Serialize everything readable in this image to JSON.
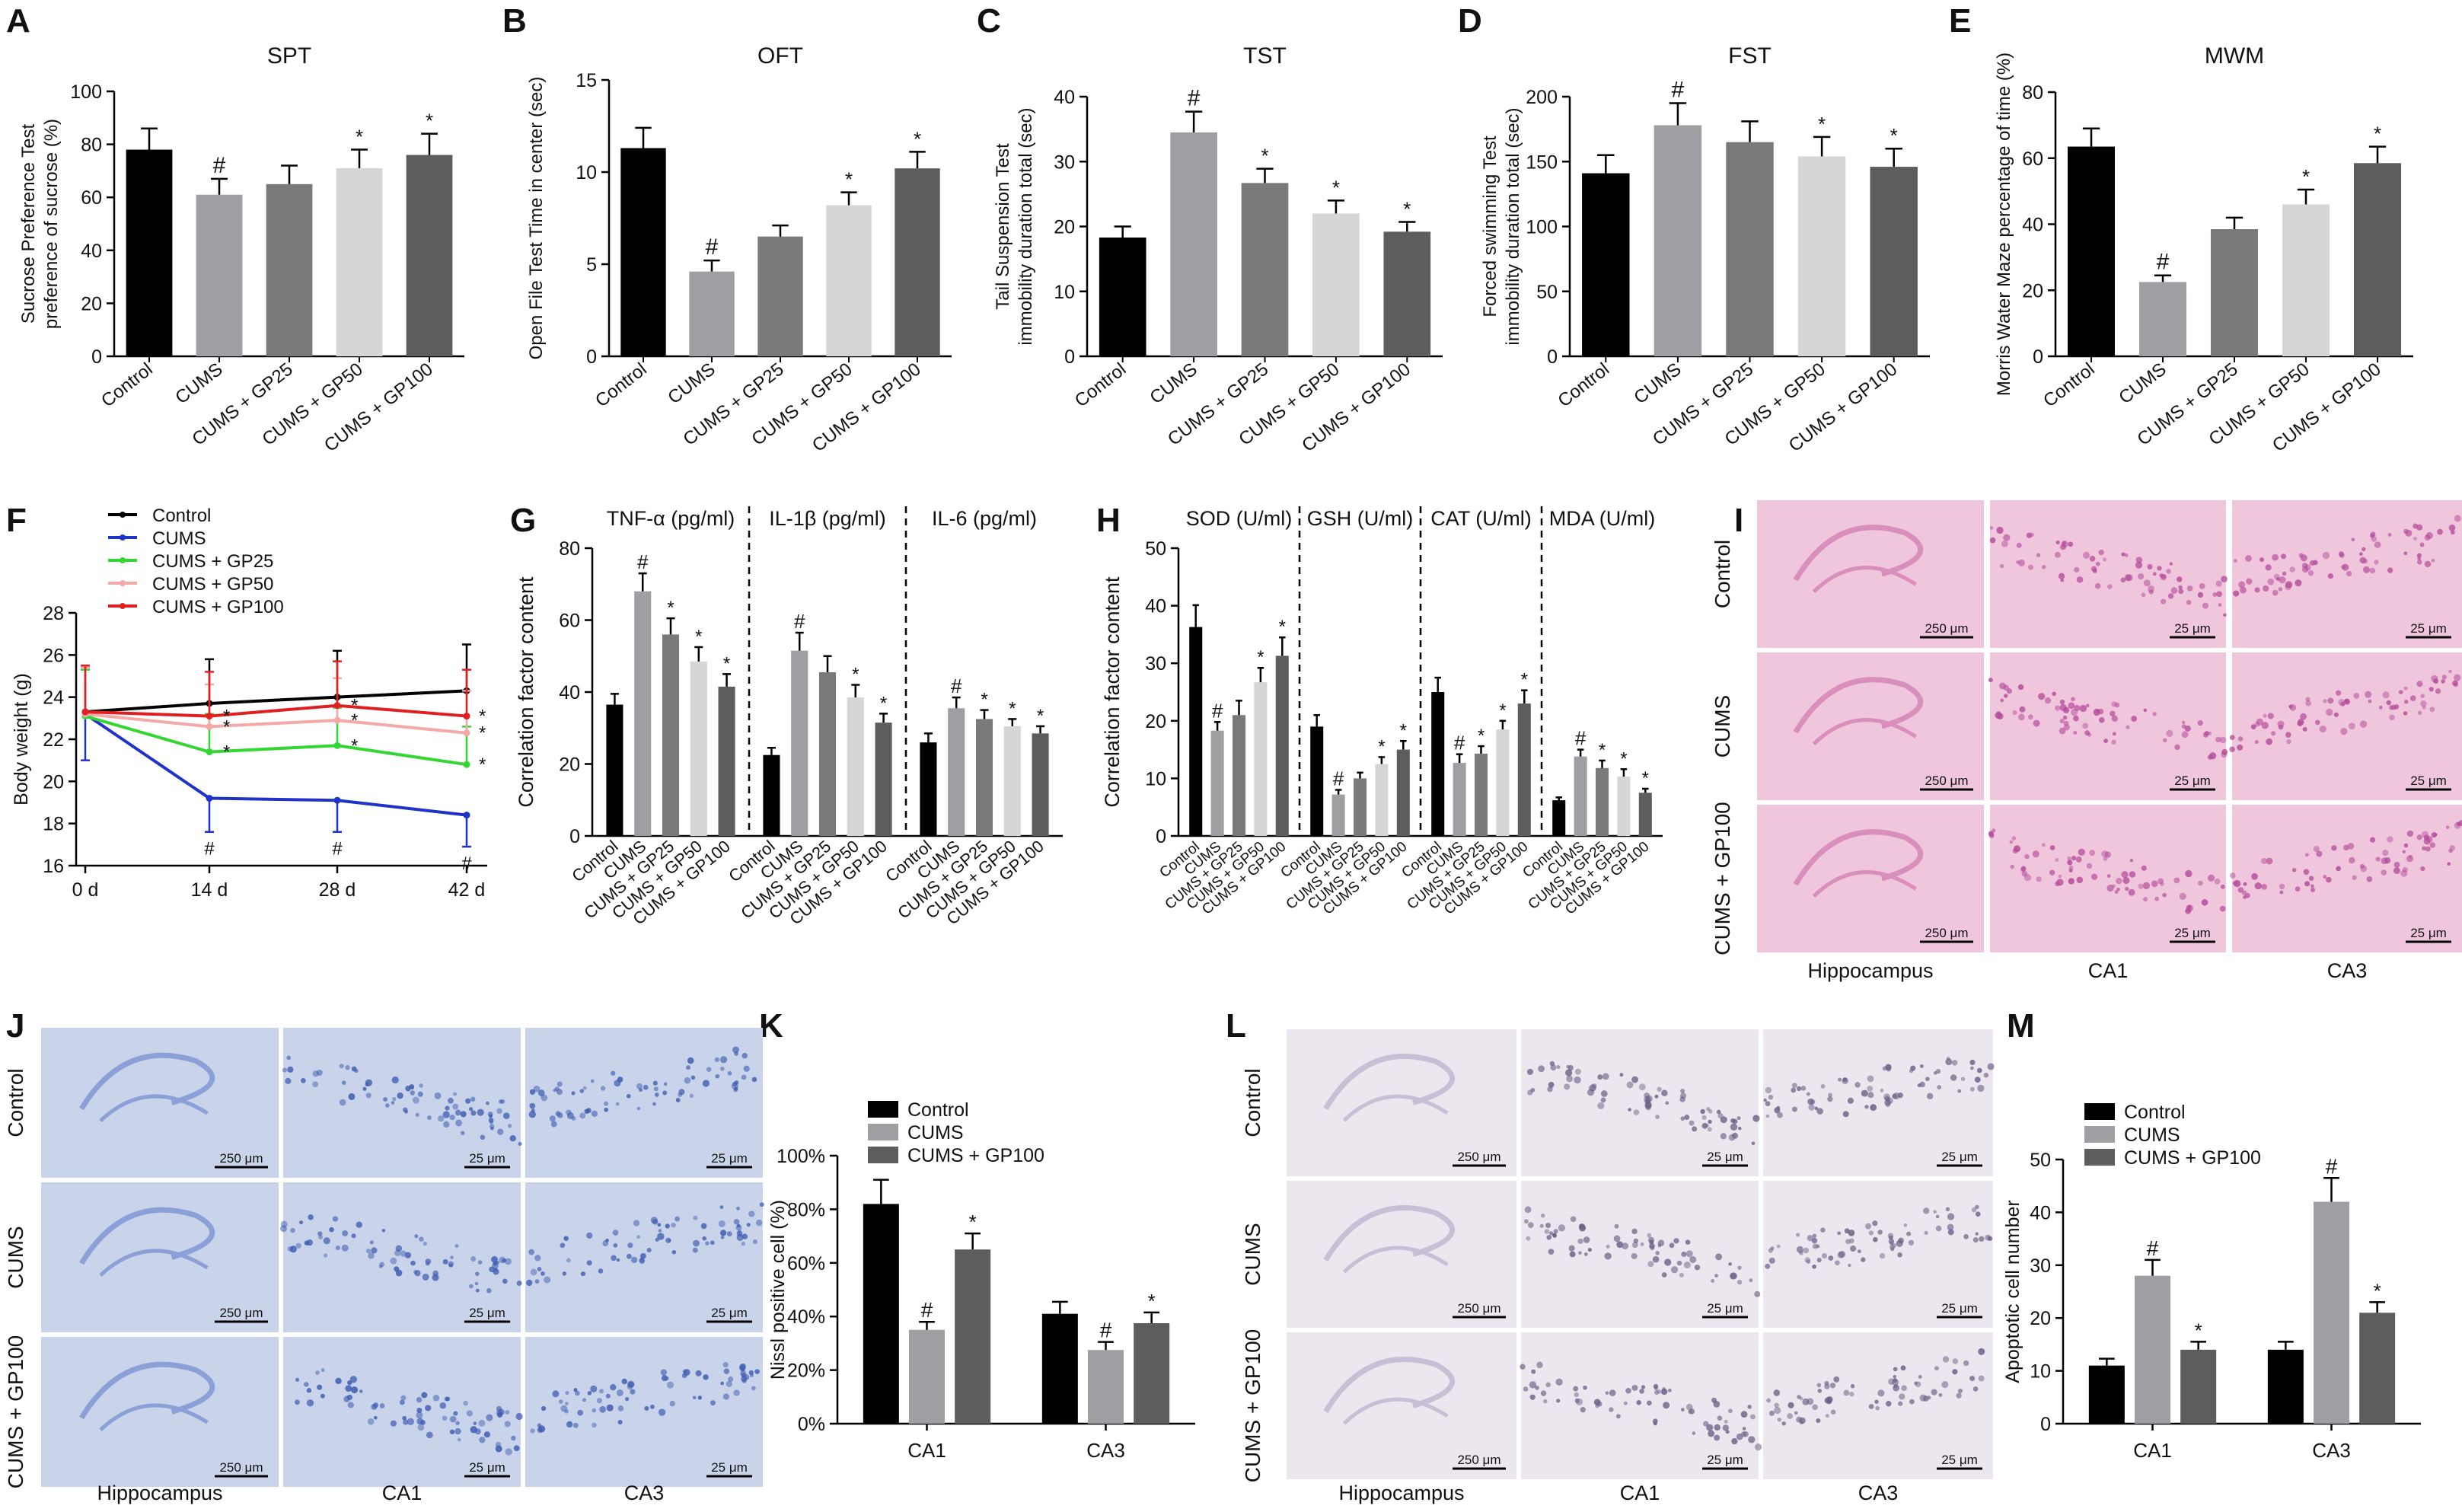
{
  "colors": {
    "control": "#000000",
    "cums": "#9e9fa3",
    "gp25": "#7a7a7a",
    "gp50": "#d6d6d6",
    "gp100": "#5d5d5d",
    "line_control": "#000000",
    "line_cums": "#1f33c9",
    "line_gp25": "#33d633",
    "line_gp50": "#f4a9a9",
    "line_gp100": "#e02020",
    "he_bg": "#efc6dc",
    "nissl_bg": "#c9d4ea",
    "tunel_bg": "#ece7ee"
  },
  "panel_letters": {
    "A": "A",
    "B": "B",
    "C": "C",
    "D": "D",
    "E": "E",
    "F": "F",
    "G": "G",
    "H": "H",
    "I": "I",
    "J": "J",
    "K": "K",
    "L": "L",
    "M": "M"
  },
  "chart_data": [
    {
      "id": "A",
      "type": "bar",
      "title": "SPT",
      "ylabel_lines": [
        "Sucrose Preference Test",
        "preference of sucrose (%)"
      ],
      "ylim": [
        0,
        100
      ],
      "yticks": [
        0,
        20,
        40,
        60,
        80,
        100
      ],
      "categories": [
        "Control",
        "CUMS",
        "CUMS + GP25",
        "CUMS + GP50",
        "CUMS + GP100"
      ],
      "values": [
        78,
        61,
        65,
        71,
        76
      ],
      "errors": [
        8,
        6,
        7,
        7,
        8
      ],
      "marks": [
        "",
        "#",
        "",
        "*",
        "*"
      ]
    },
    {
      "id": "B",
      "type": "bar",
      "title": "OFT",
      "ylabel_lines": [
        "Open File Test Time in center (sec)"
      ],
      "ylim": [
        0,
        15
      ],
      "yticks": [
        0,
        5,
        10,
        15
      ],
      "categories": [
        "Control",
        "CUMS",
        "CUMS + GP25",
        "CUMS + GP50",
        "CUMS + GP100"
      ],
      "values": [
        11.3,
        4.6,
        6.5,
        8.2,
        10.2
      ],
      "errors": [
        1.1,
        0.6,
        0.6,
        0.7,
        0.9
      ],
      "marks": [
        "",
        "#",
        "",
        "*",
        "*"
      ]
    },
    {
      "id": "C",
      "type": "bar",
      "title": "TST",
      "ylabel_lines": [
        "Tail Suspension Test",
        "immobility duration total (sec)"
      ],
      "ylim": [
        0,
        40
      ],
      "yticks": [
        0,
        10,
        20,
        30,
        40
      ],
      "categories": [
        "Control",
        "CUMS",
        "CUMS + GP25",
        "CUMS + GP50",
        "CUMS + GP100"
      ],
      "values": [
        18.3,
        34.5,
        26.7,
        22,
        19.2
      ],
      "errors": [
        1.7,
        3.2,
        2.2,
        2,
        1.5
      ],
      "marks": [
        "",
        "#",
        "*",
        "*",
        "*"
      ]
    },
    {
      "id": "D",
      "type": "bar",
      "title": "FST",
      "ylabel_lines": [
        "Forced swimming Test",
        "immobility duration total (sec)"
      ],
      "ylim": [
        0,
        200
      ],
      "yticks": [
        0,
        50,
        100,
        150,
        200
      ],
      "categories": [
        "Control",
        "CUMS",
        "CUMS + GP25",
        "CUMS + GP50",
        "CUMS + GP100"
      ],
      "values": [
        141,
        178,
        165,
        154,
        146
      ],
      "errors": [
        14,
        17,
        16,
        15,
        14
      ],
      "marks": [
        "",
        "#",
        "",
        "*",
        "*"
      ]
    },
    {
      "id": "E",
      "type": "bar",
      "title": "MWM",
      "ylabel_lines": [
        "Morris Water Maze percentage of time (%)"
      ],
      "ylim": [
        0,
        80
      ],
      "yticks": [
        0,
        20,
        40,
        60,
        80
      ],
      "categories": [
        "Control",
        "CUMS",
        "CUMS + GP25",
        "CUMS + GP50",
        "CUMS + GP100"
      ],
      "values": [
        63.5,
        22.5,
        38.5,
        46,
        58.5
      ],
      "errors": [
        5.5,
        2,
        3.5,
        4.5,
        5
      ],
      "marks": [
        "",
        "#",
        "",
        "*",
        "*"
      ]
    },
    {
      "id": "F",
      "type": "line",
      "ylabel": "Body weight (g)",
      "ylim": [
        16,
        28
      ],
      "yticks": [
        16,
        18,
        20,
        22,
        24,
        26,
        28
      ],
      "xcategories": [
        "0 d",
        "14 d",
        "28 d",
        "42 d"
      ],
      "legend_placement": "top",
      "series": [
        {
          "name": "Control",
          "color_key": "line_control",
          "values": [
            23.3,
            23.7,
            24.0,
            24.3
          ],
          "errors": [
            2.2,
            2.1,
            2.2,
            2.2
          ],
          "marks": [
            "",
            "",
            "",
            ""
          ]
        },
        {
          "name": "CUMS",
          "color_key": "line_cums",
          "values": [
            23.2,
            19.2,
            19.1,
            18.4
          ],
          "errors": [
            2.2,
            1.6,
            1.5,
            1.5
          ],
          "marks": [
            "",
            "#",
            "#",
            "#"
          ]
        },
        {
          "name": "CUMS + GP25",
          "color_key": "line_gp25",
          "values": [
            23.1,
            21.4,
            21.7,
            20.8
          ],
          "errors": [
            2.2,
            1.8,
            1.8,
            1.8
          ],
          "marks": [
            "",
            "*",
            "*",
            "*"
          ]
        },
        {
          "name": "CUMS + GP50",
          "color_key": "line_gp50",
          "values": [
            23.2,
            22.6,
            22.9,
            22.3
          ],
          "errors": [
            2.2,
            2.0,
            2.0,
            2.0
          ],
          "marks": [
            "",
            "*",
            "*",
            "*"
          ]
        },
        {
          "name": "CUMS + GP100",
          "color_key": "line_gp100",
          "values": [
            23.3,
            23.1,
            23.6,
            23.1
          ],
          "errors": [
            2.2,
            2.1,
            2.1,
            2.2
          ],
          "marks": [
            "",
            "*",
            "*",
            "*"
          ]
        }
      ]
    },
    {
      "id": "G",
      "type": "bar",
      "ylabel": "Correlation factor content",
      "ylim": [
        0,
        80
      ],
      "yticks": [
        0,
        20,
        40,
        60,
        80
      ],
      "categories": [
        "Control",
        "CUMS",
        "CUMS + GP25",
        "CUMS + GP50",
        "CUMS + GP100"
      ],
      "groups": [
        {
          "label": "TNF-α (pg/ml)",
          "values": [
            36.5,
            68,
            56,
            48.5,
            41.5
          ],
          "errors": [
            3,
            5,
            4.5,
            4,
            3.5
          ],
          "marks": [
            "",
            "#",
            "*",
            "*",
            "*"
          ]
        },
        {
          "label": "IL-1β (pg/ml)",
          "values": [
            22.5,
            51.5,
            45.5,
            38.5,
            31.5
          ],
          "errors": [
            2,
            5,
            4.5,
            3.5,
            2.5
          ],
          "marks": [
            "",
            "#",
            "",
            "*",
            "*"
          ]
        },
        {
          "label": "IL-6 (pg/ml)",
          "values": [
            26,
            35.5,
            32.5,
            30.5,
            28.5
          ],
          "errors": [
            2.5,
            3,
            2.5,
            2,
            2
          ],
          "marks": [
            "",
            "#",
            "*",
            "*",
            "*"
          ]
        }
      ]
    },
    {
      "id": "H",
      "type": "bar",
      "ylabel": "Correlation factor content",
      "ylim": [
        0,
        50
      ],
      "yticks": [
        0,
        10,
        20,
        30,
        40,
        50
      ],
      "categories": [
        "Control",
        "CUMS",
        "CUMS + GP25",
        "CUMS + GP50",
        "CUMS + GP100"
      ],
      "groups": [
        {
          "label": "SOD (U/ml)",
          "values": [
            36.3,
            18.3,
            21,
            26.7,
            31.3
          ],
          "errors": [
            3.8,
            1.5,
            2.5,
            2.5,
            3.2
          ],
          "marks": [
            "",
            "#",
            "",
            "*",
            "*"
          ]
        },
        {
          "label": "GSH (U/ml)",
          "values": [
            19,
            7.2,
            10,
            12.5,
            15
          ],
          "errors": [
            2,
            0.8,
            1,
            1.2,
            1.5
          ],
          "marks": [
            "",
            "#",
            "",
            "*",
            "*"
          ]
        },
        {
          "label": "CAT (U/ml)",
          "values": [
            25,
            12.7,
            14.3,
            18.5,
            23
          ],
          "errors": [
            2.5,
            1.5,
            1.3,
            1.5,
            2.3
          ],
          "marks": [
            "",
            "#",
            "*",
            "*",
            "*"
          ]
        },
        {
          "label": "MDA (U/ml)",
          "values": [
            6.2,
            13.8,
            11.8,
            10.3,
            7.5
          ],
          "errors": [
            0.5,
            1.2,
            1.3,
            1.3,
            0.7
          ],
          "marks": [
            "",
            "#",
            "*",
            "*",
            "*"
          ]
        }
      ]
    },
    {
      "id": "K",
      "type": "bar",
      "ylabel": "Nissl positive cell (%)",
      "ylim": [
        0,
        100
      ],
      "yticks": [
        0,
        20,
        40,
        60,
        80,
        100
      ],
      "tick_suffix": "%",
      "legend_placement": "top-left",
      "series_names": [
        "Control",
        "CUMS",
        "CUMS + GP100"
      ],
      "series_color_keys": [
        "control",
        "cums",
        "gp100"
      ],
      "categories": [
        "CA1",
        "CA3"
      ],
      "values": [
        [
          82,
          35,
          65
        ],
        [
          41,
          27.5,
          37.5
        ]
      ],
      "errors": [
        [
          9,
          3,
          6
        ],
        [
          4.5,
          3,
          4
        ]
      ],
      "marks": [
        [
          "",
          "#",
          "*"
        ],
        [
          "",
          "#",
          "*"
        ]
      ]
    },
    {
      "id": "M",
      "type": "bar",
      "ylabel": "Apoptotic cell number",
      "ylim": [
        0,
        50
      ],
      "yticks": [
        0,
        10,
        20,
        30,
        40,
        50
      ],
      "legend_placement": "top-left",
      "series_names": [
        "Control",
        "CUMS",
        "CUMS + GP100"
      ],
      "series_color_keys": [
        "control",
        "cums",
        "gp100"
      ],
      "categories": [
        "CA1",
        "CA3"
      ],
      "values": [
        [
          11,
          28,
          14
        ],
        [
          14,
          42,
          21
        ]
      ],
      "errors": [
        [
          1.3,
          3,
          1.5
        ],
        [
          1.5,
          4.5,
          2
        ]
      ],
      "marks": [
        [
          "",
          "#",
          "*"
        ],
        [
          "",
          "#",
          "*"
        ]
      ]
    }
  ],
  "micrographs": [
    {
      "id": "I",
      "stain_key": "he_bg",
      "rows": [
        "Control",
        "CUMS",
        "CUMS + GP100"
      ],
      "cols": [
        "Hippocampus",
        "CA1",
        "CA3"
      ],
      "scalebars": [
        "250 μm",
        "25 μm",
        "25 μm"
      ]
    },
    {
      "id": "J",
      "stain_key": "nissl_bg",
      "rows": [
        "Control",
        "CUMS",
        "CUMS + GP100"
      ],
      "cols": [
        "Hippocampus",
        "CA1",
        "CA3"
      ],
      "scalebars": [
        "250 μm",
        "25 μm",
        "25 μm"
      ]
    },
    {
      "id": "L",
      "stain_key": "tunel_bg",
      "rows": [
        "Control",
        "CUMS",
        "CUMS + GP100"
      ],
      "cols": [
        "Hippocampus",
        "CA1",
        "CA3"
      ],
      "scalebars": [
        "250 μm",
        "25 μm",
        "25 μm"
      ]
    }
  ]
}
